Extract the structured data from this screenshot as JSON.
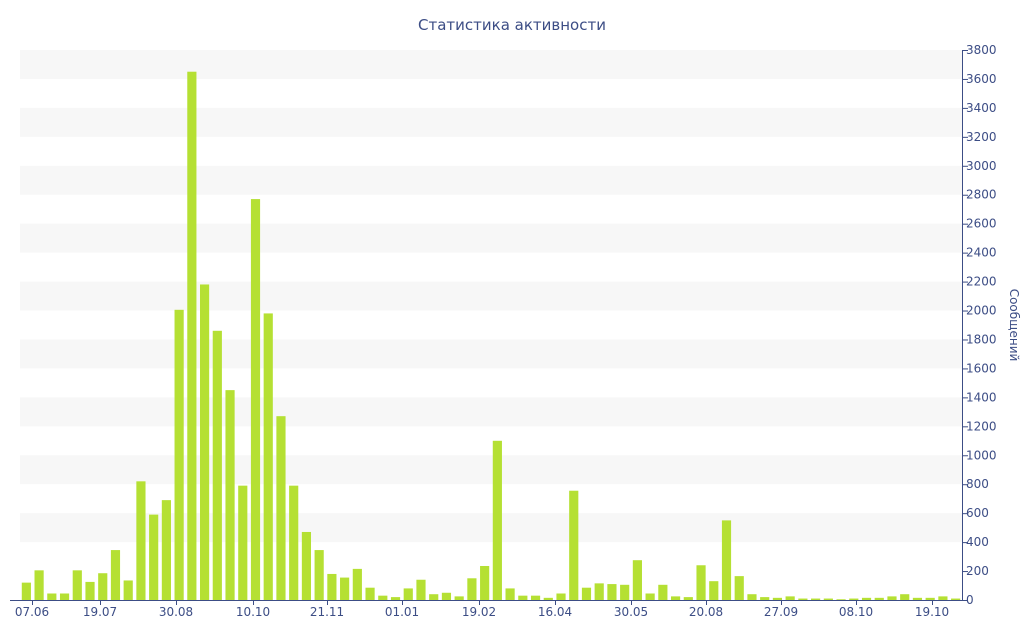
{
  "chart_data": {
    "type": "bar",
    "title": "Статистика активности",
    "ylabel": "Сообщений",
    "ylim": [
      0,
      3800
    ],
    "y_ticks": [
      0,
      200,
      400,
      600,
      800,
      1000,
      1200,
      1400,
      1600,
      1800,
      2000,
      2200,
      2400,
      2600,
      2800,
      3000,
      3200,
      3400,
      3600,
      3800
    ],
    "x_tick_labels": [
      "07.06",
      "19.07",
      "30.08",
      "10.10",
      "21.11",
      "01.01",
      "19.02",
      "16.04",
      "30.05",
      "20.08",
      "27.09",
      "08.10",
      "19.10"
    ],
    "y_axis_position": "right",
    "grid": "alternating horizontal bands",
    "colors": {
      "bar": "#b5e033",
      "axis": "#3c4d85",
      "band": "#f7f7f7"
    },
    "values": [
      120,
      205,
      45,
      45,
      205,
      125,
      185,
      345,
      135,
      820,
      590,
      690,
      2005,
      3650,
      2180,
      1860,
      1450,
      790,
      2770,
      1980,
      1270,
      790,
      470,
      345,
      180,
      155,
      215,
      85,
      30,
      20,
      80,
      140,
      40,
      50,
      25,
      150,
      235,
      1100,
      80,
      30,
      30,
      15,
      45,
      755,
      85,
      115,
      110,
      105,
      275,
      45,
      105,
      25,
      20,
      240,
      130,
      550,
      165,
      40,
      20,
      15,
      25,
      10,
      10,
      10,
      5,
      10,
      15,
      15,
      25,
      40,
      15,
      15,
      25,
      10
    ]
  }
}
